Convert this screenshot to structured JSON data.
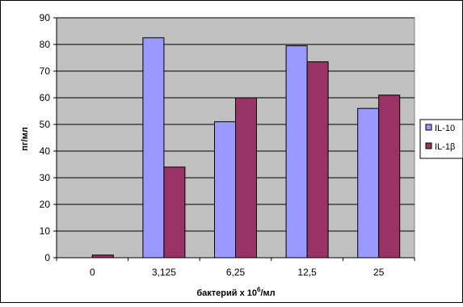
{
  "chart_data": {
    "type": "bar",
    "categories": [
      "0",
      "3,125",
      "6,25",
      "12,5",
      "25"
    ],
    "series": [
      {
        "name": "IL-10",
        "values": [
          0,
          82.5,
          51,
          79.5,
          56
        ],
        "color": "#9999ff"
      },
      {
        "name": "IL-1β",
        "values": [
          1,
          34,
          60,
          73.5,
          61
        ],
        "color": "#993366"
      }
    ],
    "title": "",
    "xlabel_main": "бактерий х 10",
    "xlabel_sup": "6",
    "xlabel_tail": "/мл",
    "ylabel": "пг/мл",
    "ylim": [
      0,
      90
    ],
    "yticks": [
      "0",
      "10",
      "20",
      "30",
      "40",
      "50",
      "60",
      "70",
      "80",
      "90"
    ],
    "grid": true,
    "plot_background": "#c0c0c0",
    "legend_position": "right"
  }
}
